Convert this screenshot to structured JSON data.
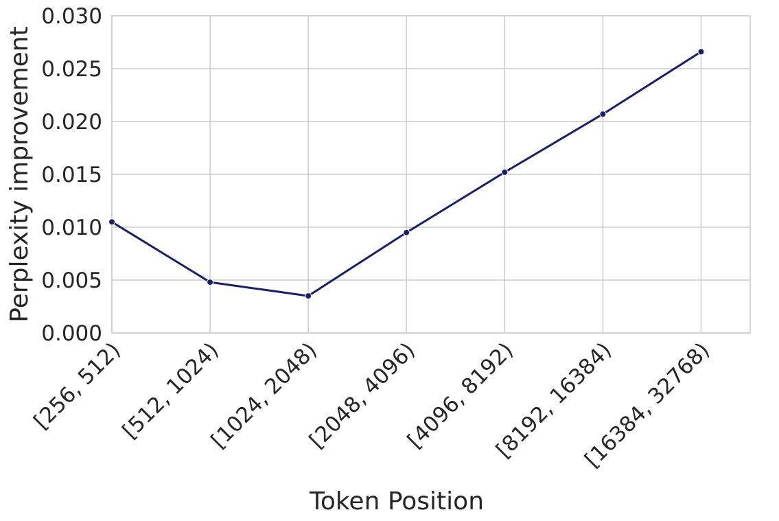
{
  "chart_data": {
    "type": "line",
    "categories": [
      "[256, 512)",
      "[512, 1024)",
      "[1024, 2048)",
      "[2048, 4096)",
      "[4096, 8192)",
      "[8192, 16384)",
      "[16384, 32768)"
    ],
    "series": [
      {
        "values": [
          0.0105,
          0.0048,
          0.0035,
          0.0095,
          0.0152,
          0.0207,
          0.0266
        ]
      }
    ],
    "title": "",
    "xlabel": "Token Position",
    "ylabel": "Perplexity improvement",
    "ylim": [
      0.0,
      0.03
    ],
    "yticks": [
      "0.000",
      "0.005",
      "0.010",
      "0.015",
      "0.020",
      "0.025",
      "0.030"
    ],
    "grid": true,
    "line_color": "#1b1f6b",
    "grid_color": "#cccccc"
  }
}
